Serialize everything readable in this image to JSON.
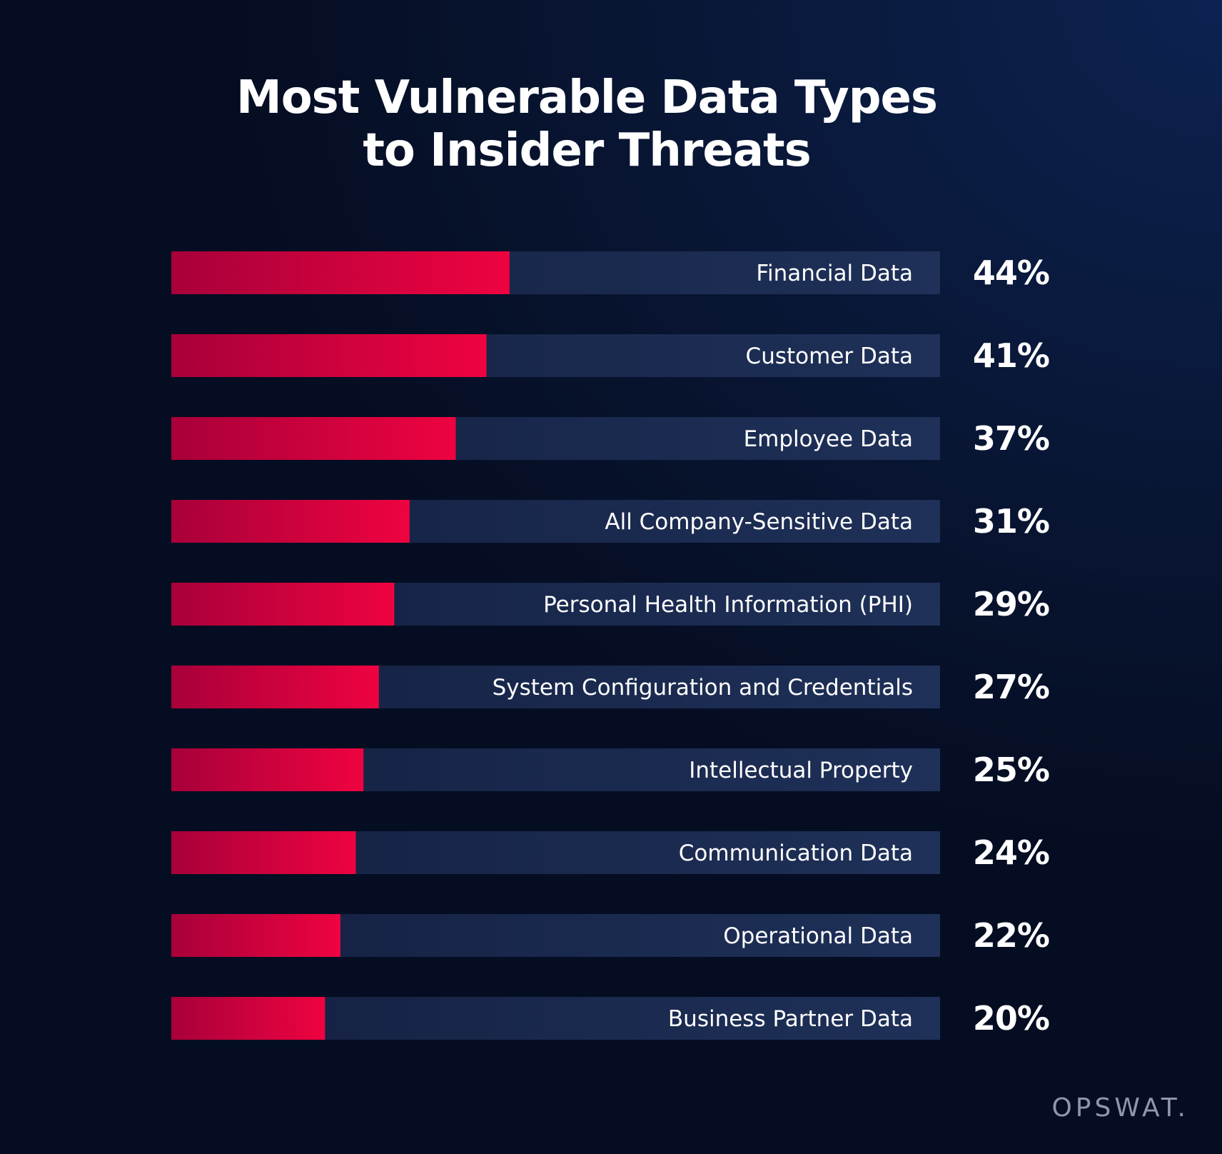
{
  "chart_data": {
    "type": "bar",
    "orientation": "horizontal",
    "title_lines": [
      "Most Vulnerable Data Types",
      "to Insider Threats"
    ],
    "categories": [
      "Financial Data",
      "Customer Data",
      "Employee Data",
      "All Company-Sensitive Data",
      "Personal Health Information (PHI)",
      "System Configuration and Credentials",
      "Intellectual Property",
      "Communication Data",
      "Operational Data",
      "Business Partner Data"
    ],
    "values": [
      44,
      41,
      37,
      31,
      29,
      27,
      25,
      24,
      22,
      20
    ],
    "value_labels": [
      "44%",
      "41%",
      "37%",
      "31%",
      "29%",
      "27%",
      "25%",
      "24%",
      "22%",
      "20%"
    ],
    "unit": "%",
    "xlim": [
      0,
      100
    ],
    "legend": "none",
    "grid": false
  },
  "colors": {
    "bar_fill_start": "#a8003a",
    "bar_fill_end": "#ee0340",
    "bar_track": "#1b2b52",
    "background": "#0a1a3d"
  },
  "brand": {
    "logo_text": "OPSWAT."
  }
}
